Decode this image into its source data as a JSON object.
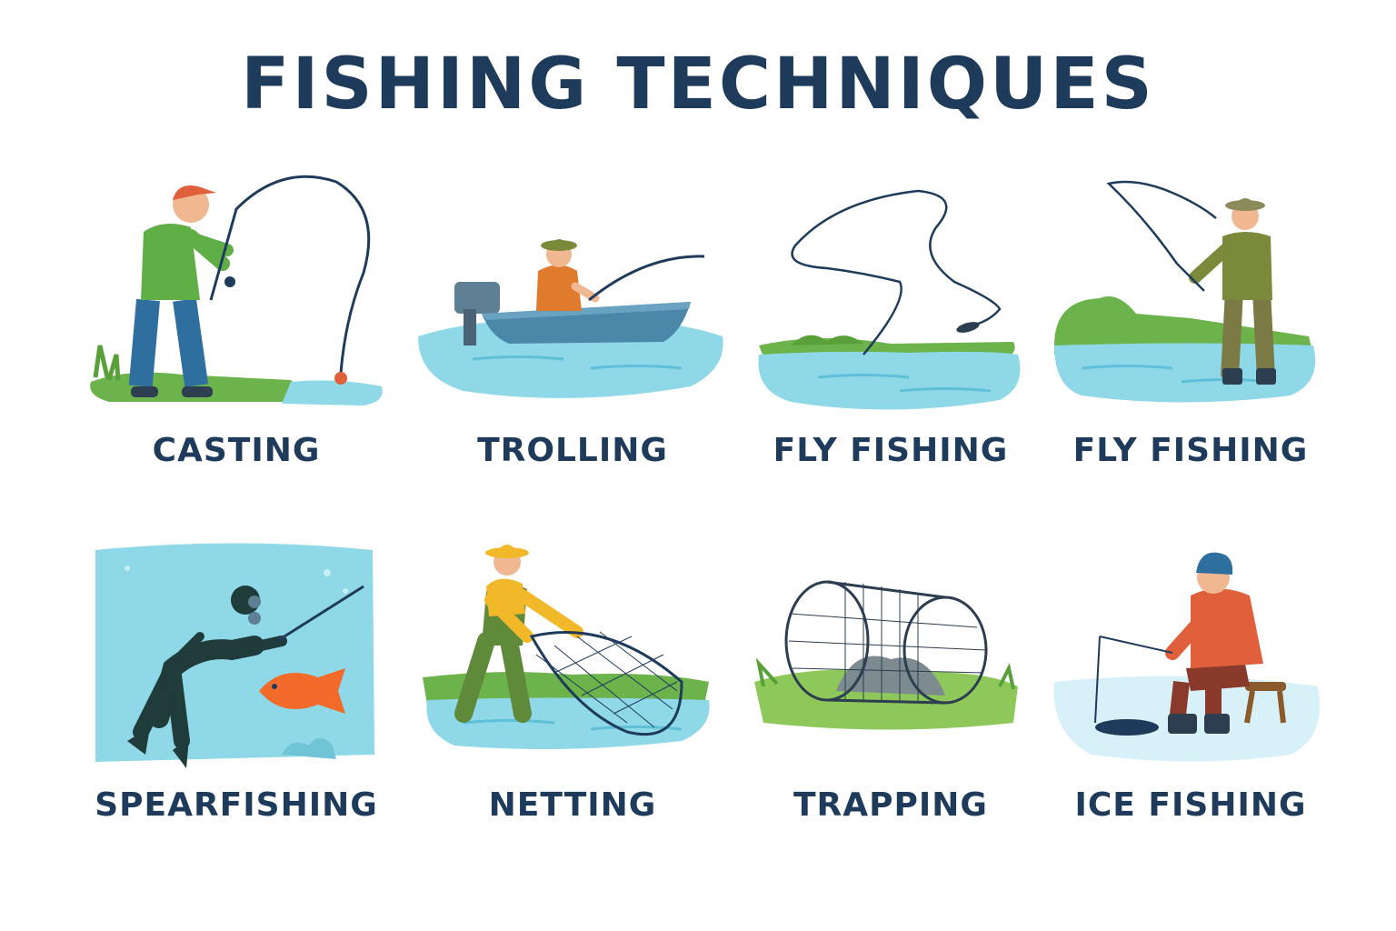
{
  "title": "FISHING TECHNIQUES",
  "palette": {
    "text": "#1f3b5c",
    "water": "#7fd3e6",
    "grass": "#6bb34a",
    "shirt_green": "#5fae46",
    "jeans": "#2f6fa0",
    "hat_red": "#e0603c",
    "vest_orange": "#e07a2c",
    "boat": "#4a87a8",
    "fish_orange": "#f26b2a",
    "ice": "#d8f1f8"
  },
  "techniques": [
    {
      "label": "CASTING",
      "icon": "casting-icon"
    },
    {
      "label": "TROLLING",
      "icon": "trolling-icon"
    },
    {
      "label": "FLY FISHING",
      "icon": "fly-line-icon"
    },
    {
      "label": "FLY FISHING",
      "icon": "fly-fisherman-icon"
    },
    {
      "label": "SPEARFISHING",
      "icon": "spearfishing-icon"
    },
    {
      "label": "NETTING",
      "icon": "netting-icon"
    },
    {
      "label": "TRAPPING",
      "icon": "fish-trap-icon"
    },
    {
      "label": "ICE FISHING",
      "icon": "ice-fishing-icon"
    }
  ]
}
